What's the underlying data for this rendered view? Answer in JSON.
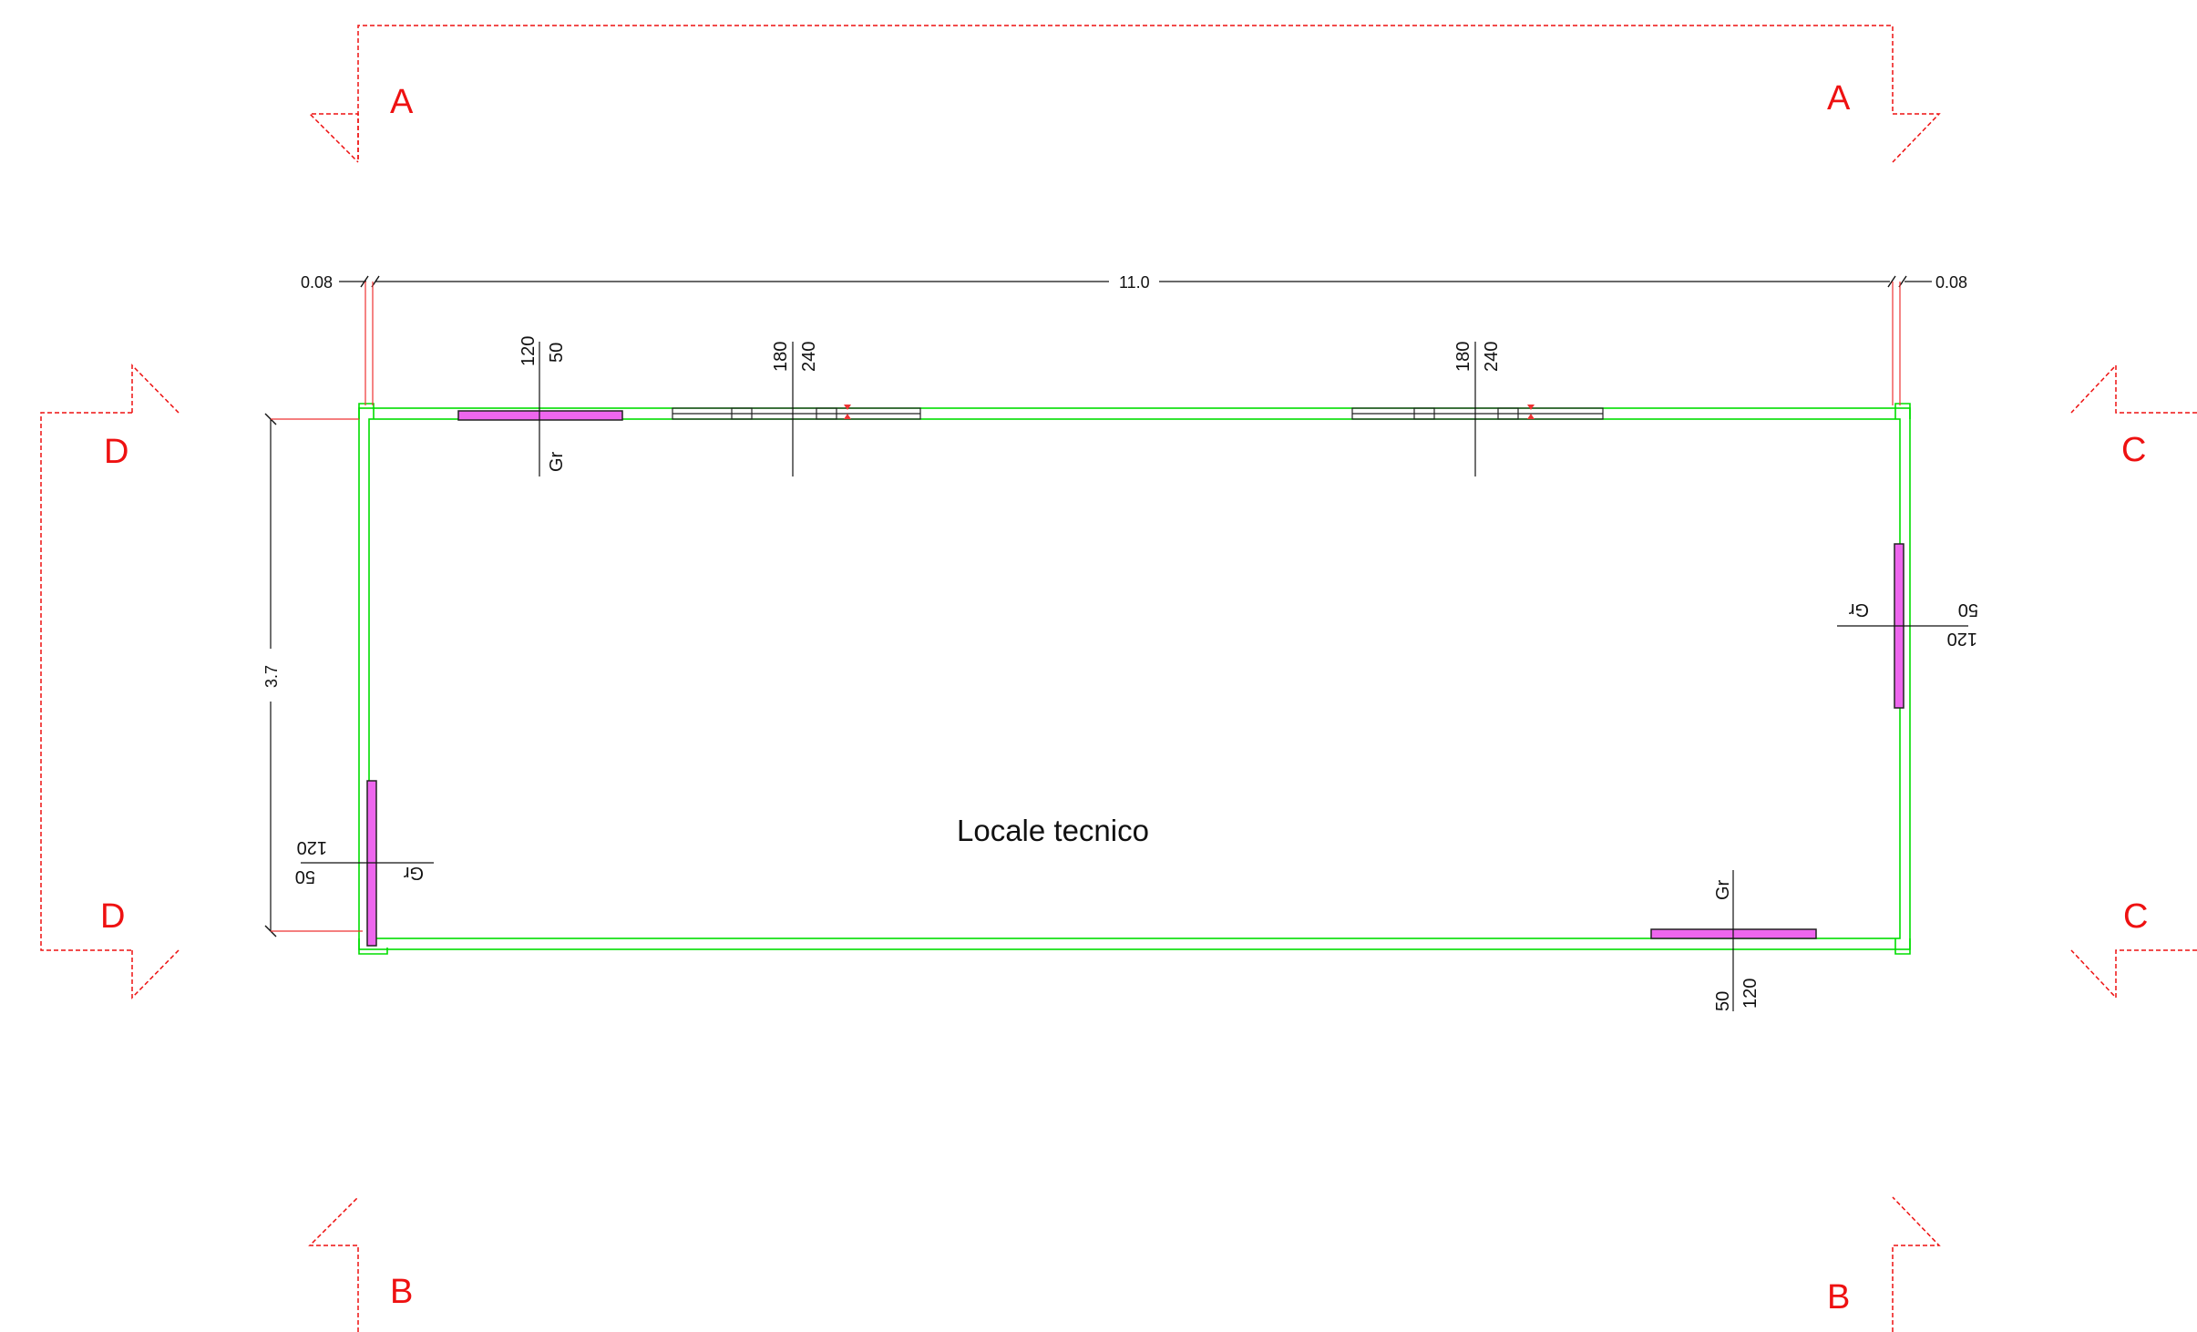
{
  "colors": {
    "wall": "#00dd00",
    "section_line": "#ee1111",
    "window_fill": "#ee66ee",
    "dimension": "#111111",
    "background": "#ffffff"
  },
  "room": {
    "name": "Locale tecnico"
  },
  "section_markers": {
    "a": "A",
    "b": "B",
    "c": "C",
    "d": "D"
  },
  "dimensions": {
    "overall_width": "11.0",
    "overall_depth": "3.7",
    "wall_left": "0.08",
    "wall_right": "0.08"
  },
  "openings": [
    {
      "type": "window",
      "width": "120",
      "height": "50",
      "sill": "Gr",
      "wall": "north"
    },
    {
      "type": "door",
      "width": "180",
      "height": "240",
      "wall": "north"
    },
    {
      "type": "door",
      "width": "180",
      "height": "240",
      "wall": "north"
    },
    {
      "type": "window",
      "width": "120",
      "height": "50",
      "sill": "Gr",
      "wall": "east"
    },
    {
      "type": "window",
      "width": "120",
      "height": "50",
      "sill": "Gr",
      "wall": "south"
    },
    {
      "type": "window",
      "width": "120",
      "height": "50",
      "sill": "Gr",
      "wall": "west"
    }
  ]
}
